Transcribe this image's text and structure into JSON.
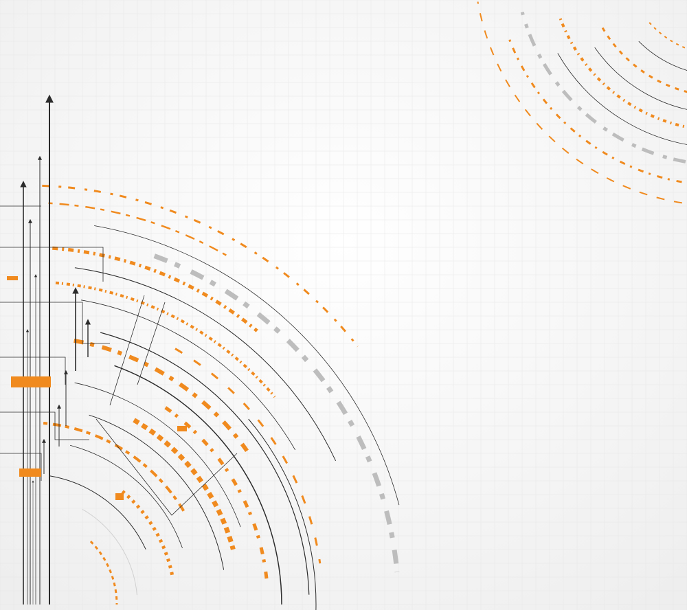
{
  "artwork": {
    "subject": "abstract-tech-circuit-arcs",
    "colors": {
      "background_center": "#ffffff",
      "background_edge": "#eeeeee",
      "grid": "#e6e6e6",
      "orange": "#f08a1e",
      "dark": "#2b2b2b",
      "gray": "#bdbdbd",
      "light_gray": "#d0d0d0"
    }
  }
}
